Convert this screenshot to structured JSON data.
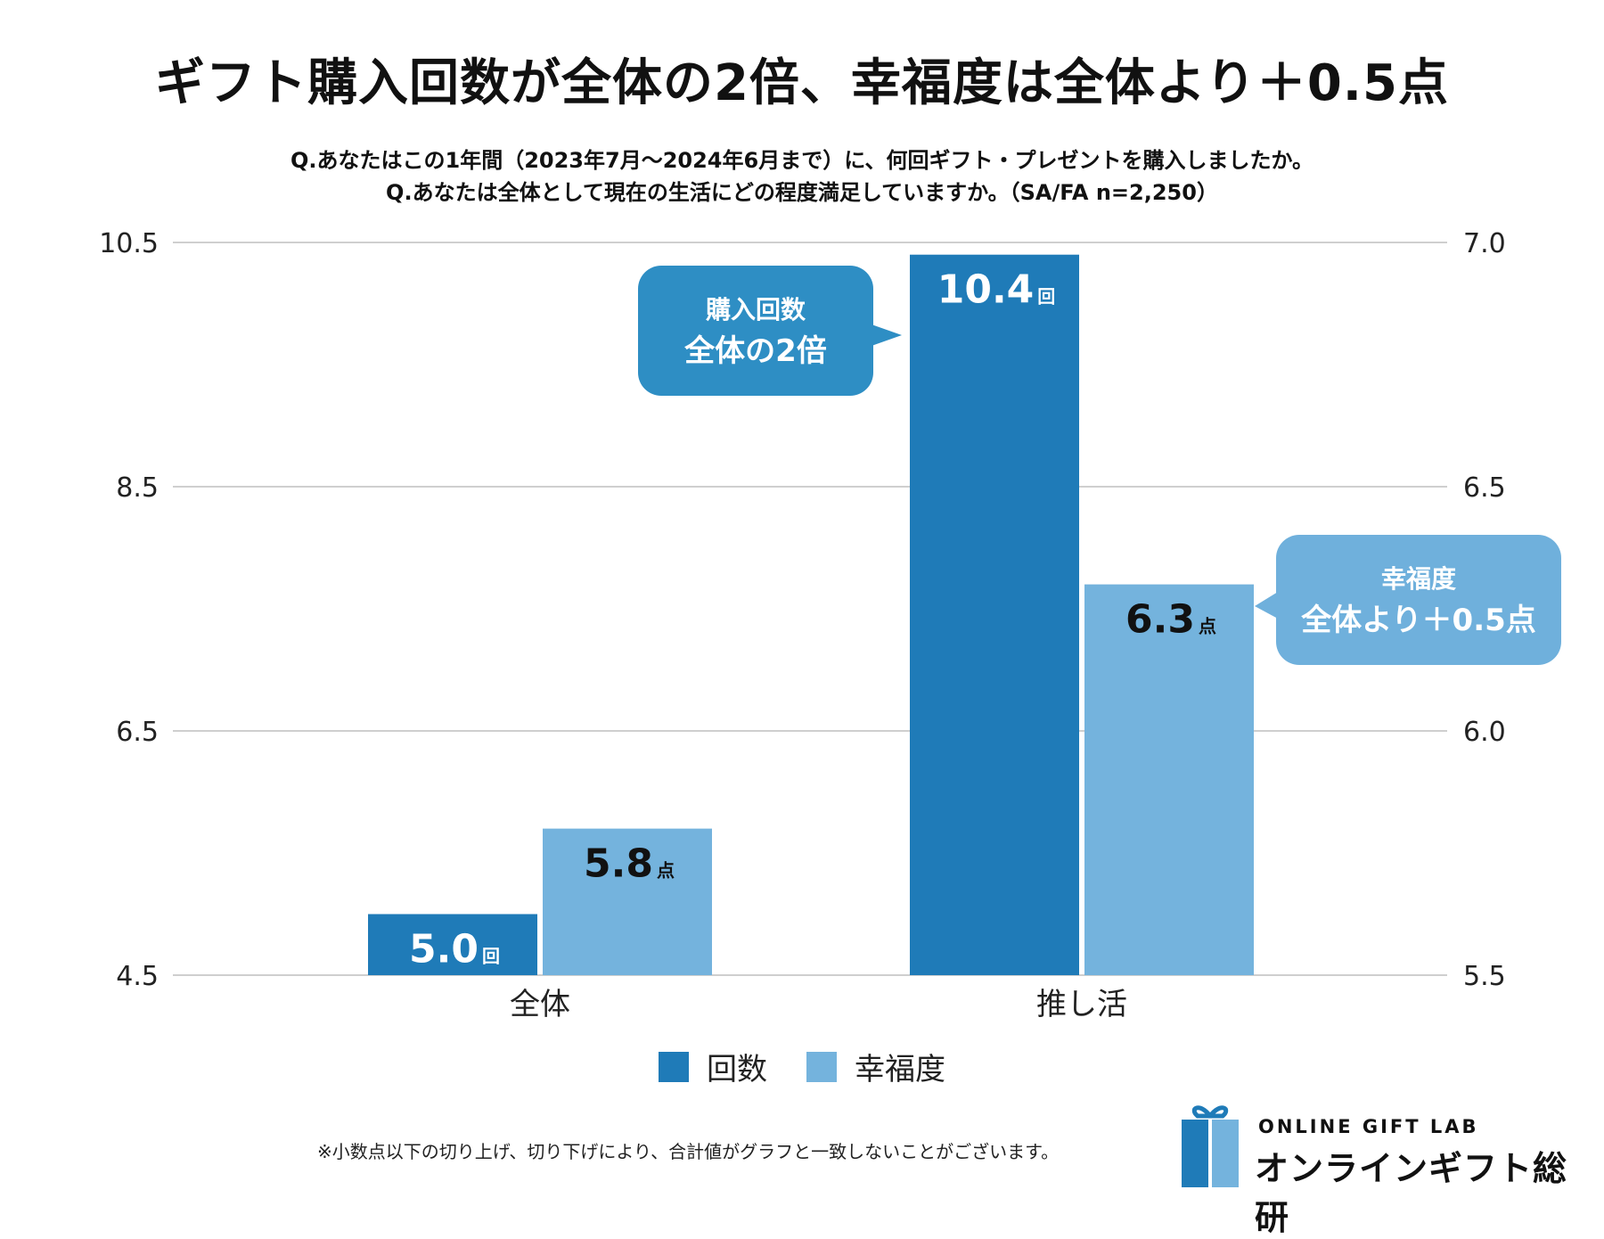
{
  "title": "ギフト購入回数が全体の2倍、幸福度は全体より＋0.5点",
  "question1": "Q.あなたはこの1年間（2023年7月～2024年6月まで）に、何回ギフト・プレゼントを購入しましたか。",
  "question2": "Q.あなたは全体として現在の生活にどの程度満足していますか。（SA/FA n=2,250）",
  "chart_data": {
    "type": "bar",
    "categories": [
      "全体",
      "推し活"
    ],
    "series": [
      {
        "name": "回数",
        "axis": "left",
        "values": [
          5.0,
          10.4
        ],
        "unit": "回",
        "color": "#1f7bb8"
      },
      {
        "name": "幸福度",
        "axis": "right",
        "values": [
          5.8,
          6.3
        ],
        "unit": "点",
        "color": "#74b3dd"
      }
    ],
    "value_labels": [
      [
        "5.0",
        "10.4"
      ],
      [
        "5.8",
        "6.3"
      ]
    ],
    "left_axis": {
      "min": 4.5,
      "max": 10.5,
      "ticks": [
        "10.5",
        "8.5",
        "6.5",
        "4.5"
      ]
    },
    "right_axis": {
      "min": 5.5,
      "max": 7.0,
      "ticks": [
        "7.0",
        "6.5",
        "6.0",
        "5.5"
      ]
    },
    "grid": true,
    "legend_position": "bottom-center"
  },
  "legend": {
    "items": [
      {
        "label": "回数",
        "color": "#1f7bb8"
      },
      {
        "label": "幸福度",
        "color": "#74b3dd"
      }
    ]
  },
  "callouts": {
    "purchase": {
      "line1": "購入回数",
      "line2": "全体の2倍"
    },
    "happiness": {
      "line1": "幸福度",
      "line2": "全体より＋0.5点"
    }
  },
  "footnote": "※小数点以下の切り上げ、切り下げにより、合計値がグラフと一致しないことがございます。",
  "logo": {
    "en": "ONLINE GIFT LAB",
    "ja": "オンラインギフト総研"
  },
  "colors": {
    "primary": "#1f7bb8",
    "secondary": "#74b3dd",
    "callout1": "#2e8ec4",
    "callout2": "#6fb0dc"
  }
}
